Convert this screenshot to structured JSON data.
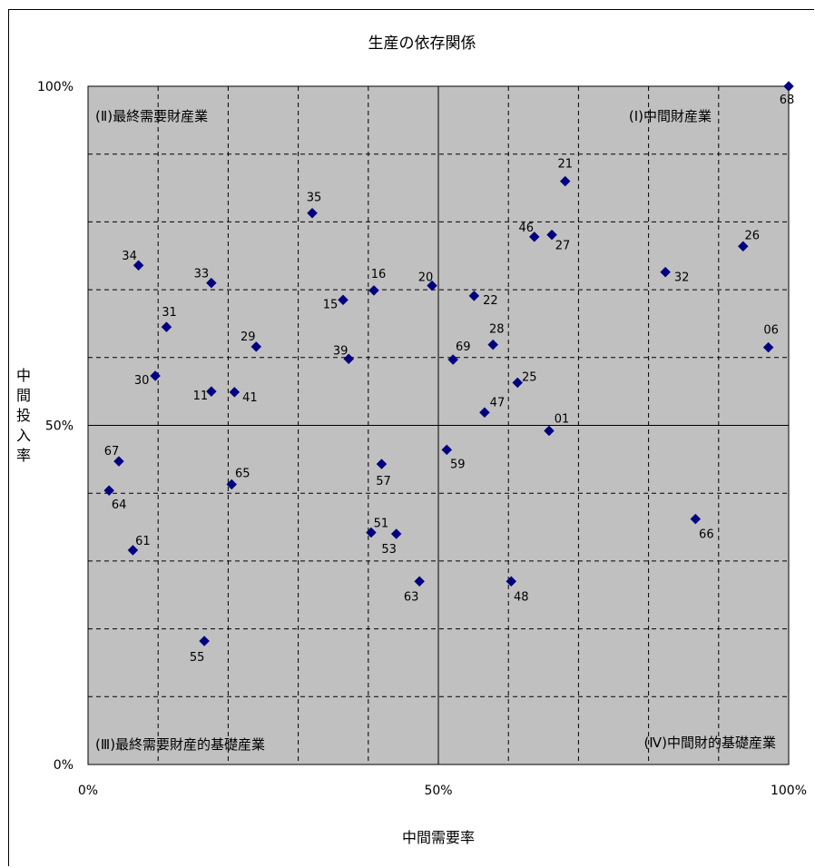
{
  "chart_data": {
    "type": "scatter",
    "title": "生産の依存関係",
    "xlabel": "中間需要率",
    "ylabel": "中間投入率",
    "xlim": [
      0,
      100
    ],
    "ylim": [
      0,
      100
    ],
    "x_ticks": [
      "0%",
      "50%",
      "100%"
    ],
    "y_ticks": [
      "0%",
      "50%",
      "100%"
    ],
    "grid": "dashed every 10%",
    "reference_lines": [
      50
    ],
    "plot_background": "#c0c0c0",
    "marker_color": "#000080",
    "quadrants": [
      {
        "id": "I",
        "label": "(Ⅰ)中間財産業",
        "position": "top-right"
      },
      {
        "id": "II",
        "label": "(Ⅱ)最終需要財産業",
        "position": "top-left"
      },
      {
        "id": "III",
        "label": "(Ⅲ)最終需要財産的基礎産業",
        "position": "bottom-left"
      },
      {
        "id": "IV",
        "label": "(Ⅳ)中間財的基礎産業",
        "position": "bottom-right"
      }
    ],
    "points": [
      {
        "label": "01",
        "x": 65.8,
        "y": 49.2
      },
      {
        "label": "06",
        "x": 97.1,
        "y": 61.5
      },
      {
        "label": "11",
        "x": 17.6,
        "y": 55.0
      },
      {
        "label": "15",
        "x": 36.4,
        "y": 68.5
      },
      {
        "label": "16",
        "x": 40.8,
        "y": 69.9
      },
      {
        "label": "20",
        "x": 49.1,
        "y": 70.6
      },
      {
        "label": "21",
        "x": 68.1,
        "y": 86.0
      },
      {
        "label": "22",
        "x": 55.1,
        "y": 69.1
      },
      {
        "label": "25",
        "x": 61.3,
        "y": 56.3
      },
      {
        "label": "26",
        "x": 93.5,
        "y": 76.4
      },
      {
        "label": "27",
        "x": 66.2,
        "y": 78.1
      },
      {
        "label": "28",
        "x": 57.8,
        "y": 61.9
      },
      {
        "label": "29",
        "x": 24.0,
        "y": 61.6
      },
      {
        "label": "30",
        "x": 9.6,
        "y": 57.3
      },
      {
        "label": "31",
        "x": 11.2,
        "y": 64.5
      },
      {
        "label": "32",
        "x": 82.4,
        "y": 72.6
      },
      {
        "label": "33",
        "x": 17.6,
        "y": 71.0
      },
      {
        "label": "34",
        "x": 7.2,
        "y": 73.6
      },
      {
        "label": "35",
        "x": 32.0,
        "y": 81.3
      },
      {
        "label": "39",
        "x": 37.2,
        "y": 59.8
      },
      {
        "label": "41",
        "x": 20.9,
        "y": 54.9
      },
      {
        "label": "46",
        "x": 63.7,
        "y": 77.8
      },
      {
        "label": "47",
        "x": 56.6,
        "y": 51.9
      },
      {
        "label": "48",
        "x": 60.4,
        "y": 27.0
      },
      {
        "label": "51",
        "x": 40.4,
        "y": 34.2
      },
      {
        "label": "53",
        "x": 44.0,
        "y": 34.0
      },
      {
        "label": "55",
        "x": 16.6,
        "y": 18.2
      },
      {
        "label": "57",
        "x": 41.9,
        "y": 44.3
      },
      {
        "label": "59",
        "x": 51.2,
        "y": 46.4
      },
      {
        "label": "61",
        "x": 6.4,
        "y": 31.6
      },
      {
        "label": "63",
        "x": 47.3,
        "y": 27.0
      },
      {
        "label": "64",
        "x": 3.0,
        "y": 40.4
      },
      {
        "label": "65",
        "x": 20.5,
        "y": 41.3
      },
      {
        "label": "66",
        "x": 86.7,
        "y": 36.2
      },
      {
        "label": "67",
        "x": 4.4,
        "y": 44.7
      },
      {
        "label": "68",
        "x": 100.0,
        "y": 100.0
      },
      {
        "label": "69",
        "x": 52.1,
        "y": 59.7
      }
    ]
  }
}
